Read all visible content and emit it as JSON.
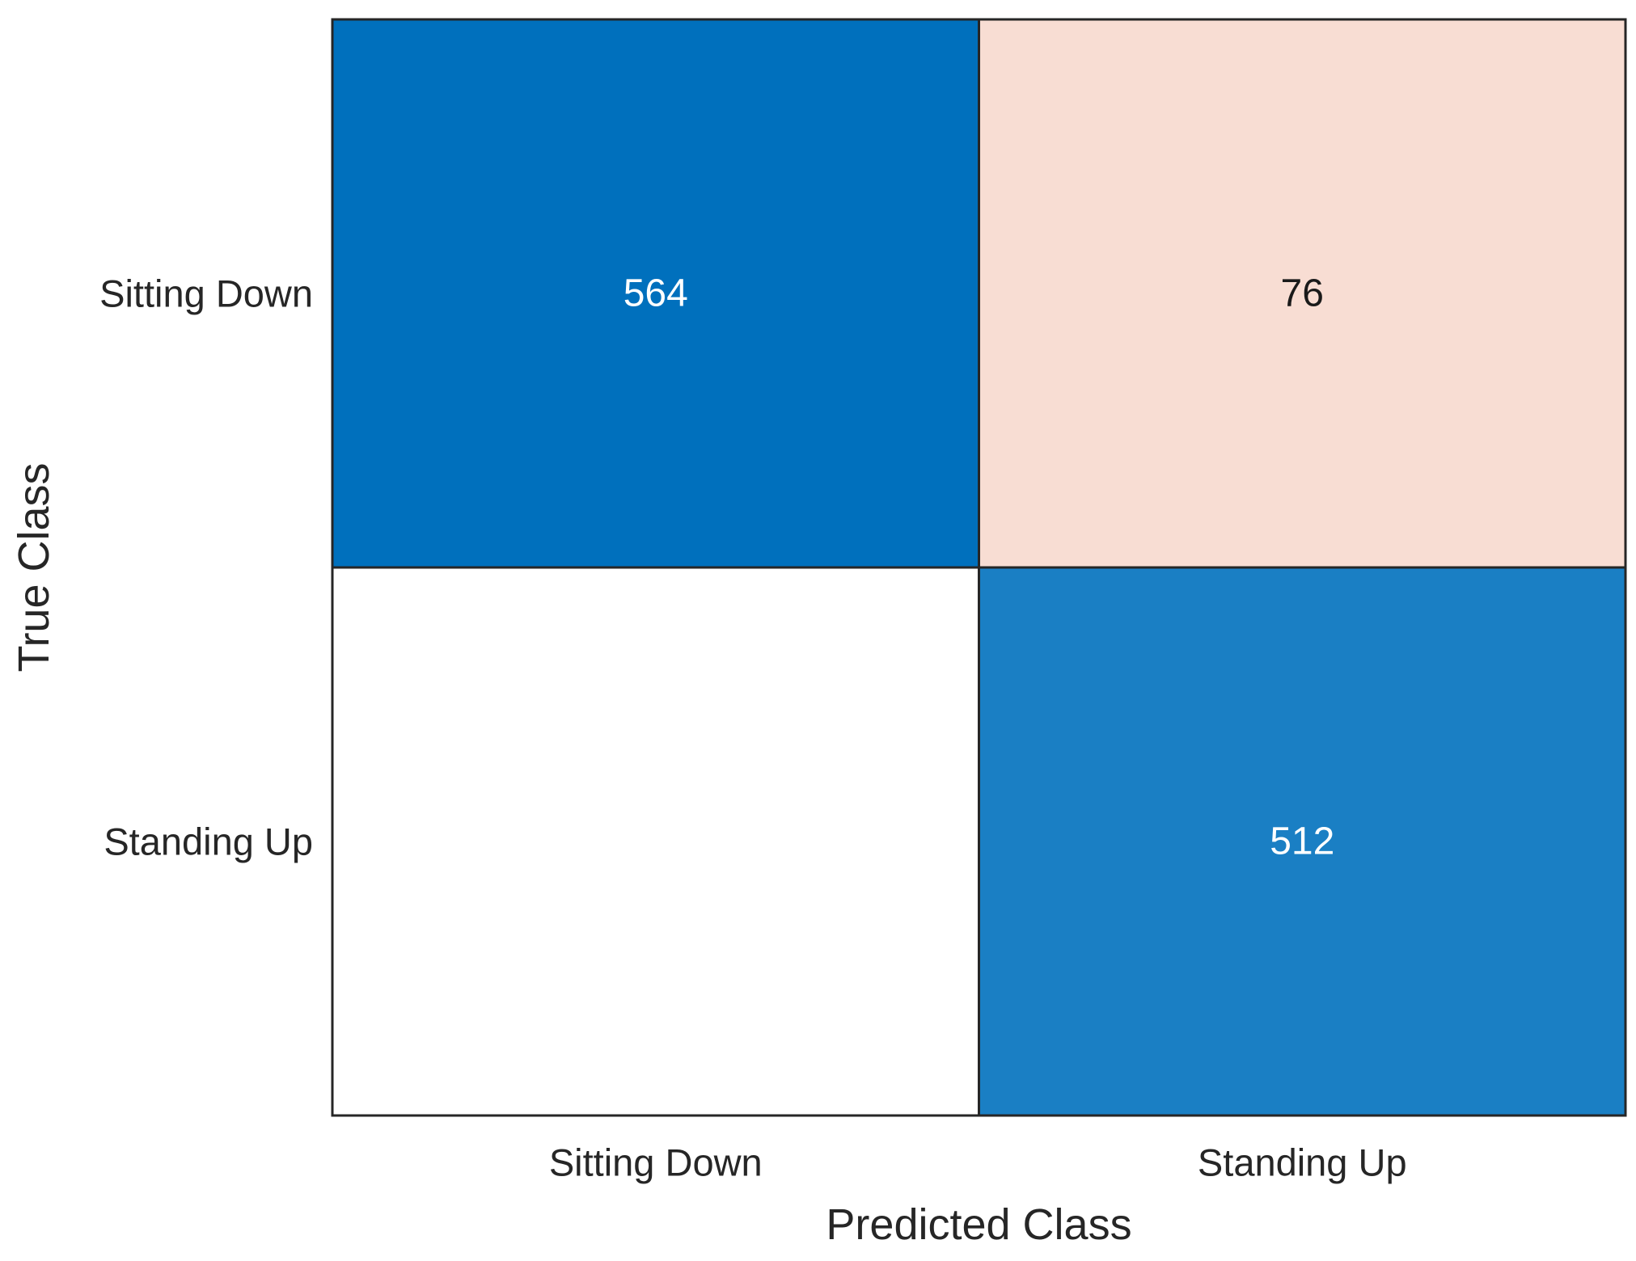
{
  "chart_data": {
    "type": "heatmap",
    "title": "",
    "xlabel": "Predicted Class",
    "ylabel": "True Class",
    "x_categories": [
      "Sitting Down",
      "Standing Up"
    ],
    "y_categories": [
      "Sitting Down",
      "Standing Up"
    ],
    "values": [
      [
        564,
        76
      ],
      [
        null,
        512
      ]
    ],
    "cell_colors": [
      [
        "#0070bd",
        "#f8ddd3"
      ],
      [
        "#ffffff",
        "#1a7fc4"
      ]
    ],
    "label_colors": [
      [
        "#ffffff",
        "#1a1a1a"
      ],
      [
        "#1a1a1a",
        "#ffffff"
      ]
    ],
    "grid": true,
    "legend": "none"
  }
}
